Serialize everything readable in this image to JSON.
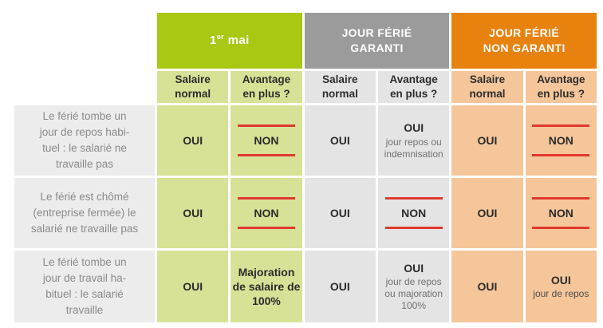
{
  "chart_data": {
    "type": "table",
    "column_groups": [
      {
        "key": "premier_mai",
        "label": "1er mai",
        "label_num": "1",
        "label_sup": "er",
        "label_rest": " mai",
        "header_color": "#a9c814",
        "cell_color": "#d8e297"
      },
      {
        "key": "jour_ferie_garanti",
        "label": "JOUR FÉRIÉ\nGARANTI",
        "header_color": "#9b9b9b",
        "cell_color": "#e4e4e4"
      },
      {
        "key": "jour_ferie_non_garanti",
        "label": "JOUR FÉRIÉ\nNON GARANTI",
        "header_color": "#e8820f",
        "cell_color": "#f5c69a"
      }
    ],
    "sub_headers": {
      "salaire": "Salaire\nnormal",
      "avantage": "Avantage\nen plus ?"
    },
    "emphasis_line_color": "#e0392e",
    "row_label_bg": "#ececec",
    "rows": [
      {
        "label": "Le férié tombe un\njour de repos habi-\ntuel : le salarié ne\ntravaille pas",
        "cells": [
          {
            "main": "OUI",
            "struck": false
          },
          {
            "main": "NON",
            "struck": true
          },
          {
            "main": "OUI",
            "struck": false
          },
          {
            "main": "OUI",
            "sub": "jour repos ou\nindemnisation",
            "struck": false
          },
          {
            "main": "OUI",
            "struck": false
          },
          {
            "main": "NON",
            "struck": true
          }
        ]
      },
      {
        "label": "Le férié est chômé\n(entreprise fermée) le\nsalarié ne travaille pas",
        "cells": [
          {
            "main": "OUI",
            "struck": false
          },
          {
            "main": "NON",
            "struck": true
          },
          {
            "main": "OUI",
            "struck": false
          },
          {
            "main": "NON",
            "struck": true
          },
          {
            "main": "OUI",
            "struck": false
          },
          {
            "main": "NON",
            "struck": true
          }
        ]
      },
      {
        "label": "Le férié tombe un\njour de travail ha-\nbituel : le salarié\ntravaille",
        "cells": [
          {
            "main": "OUI",
            "struck": false
          },
          {
            "main": "Majoration\nde salaire de\n100%",
            "struck": false
          },
          {
            "main": "OUI",
            "struck": false
          },
          {
            "main": "OUI",
            "sub": "jour de repos\nou majoration\n100%",
            "struck": false
          },
          {
            "main": "OUI",
            "struck": false
          },
          {
            "main": "OUI",
            "sub": "jour de repos",
            "struck": false
          }
        ]
      }
    ]
  }
}
